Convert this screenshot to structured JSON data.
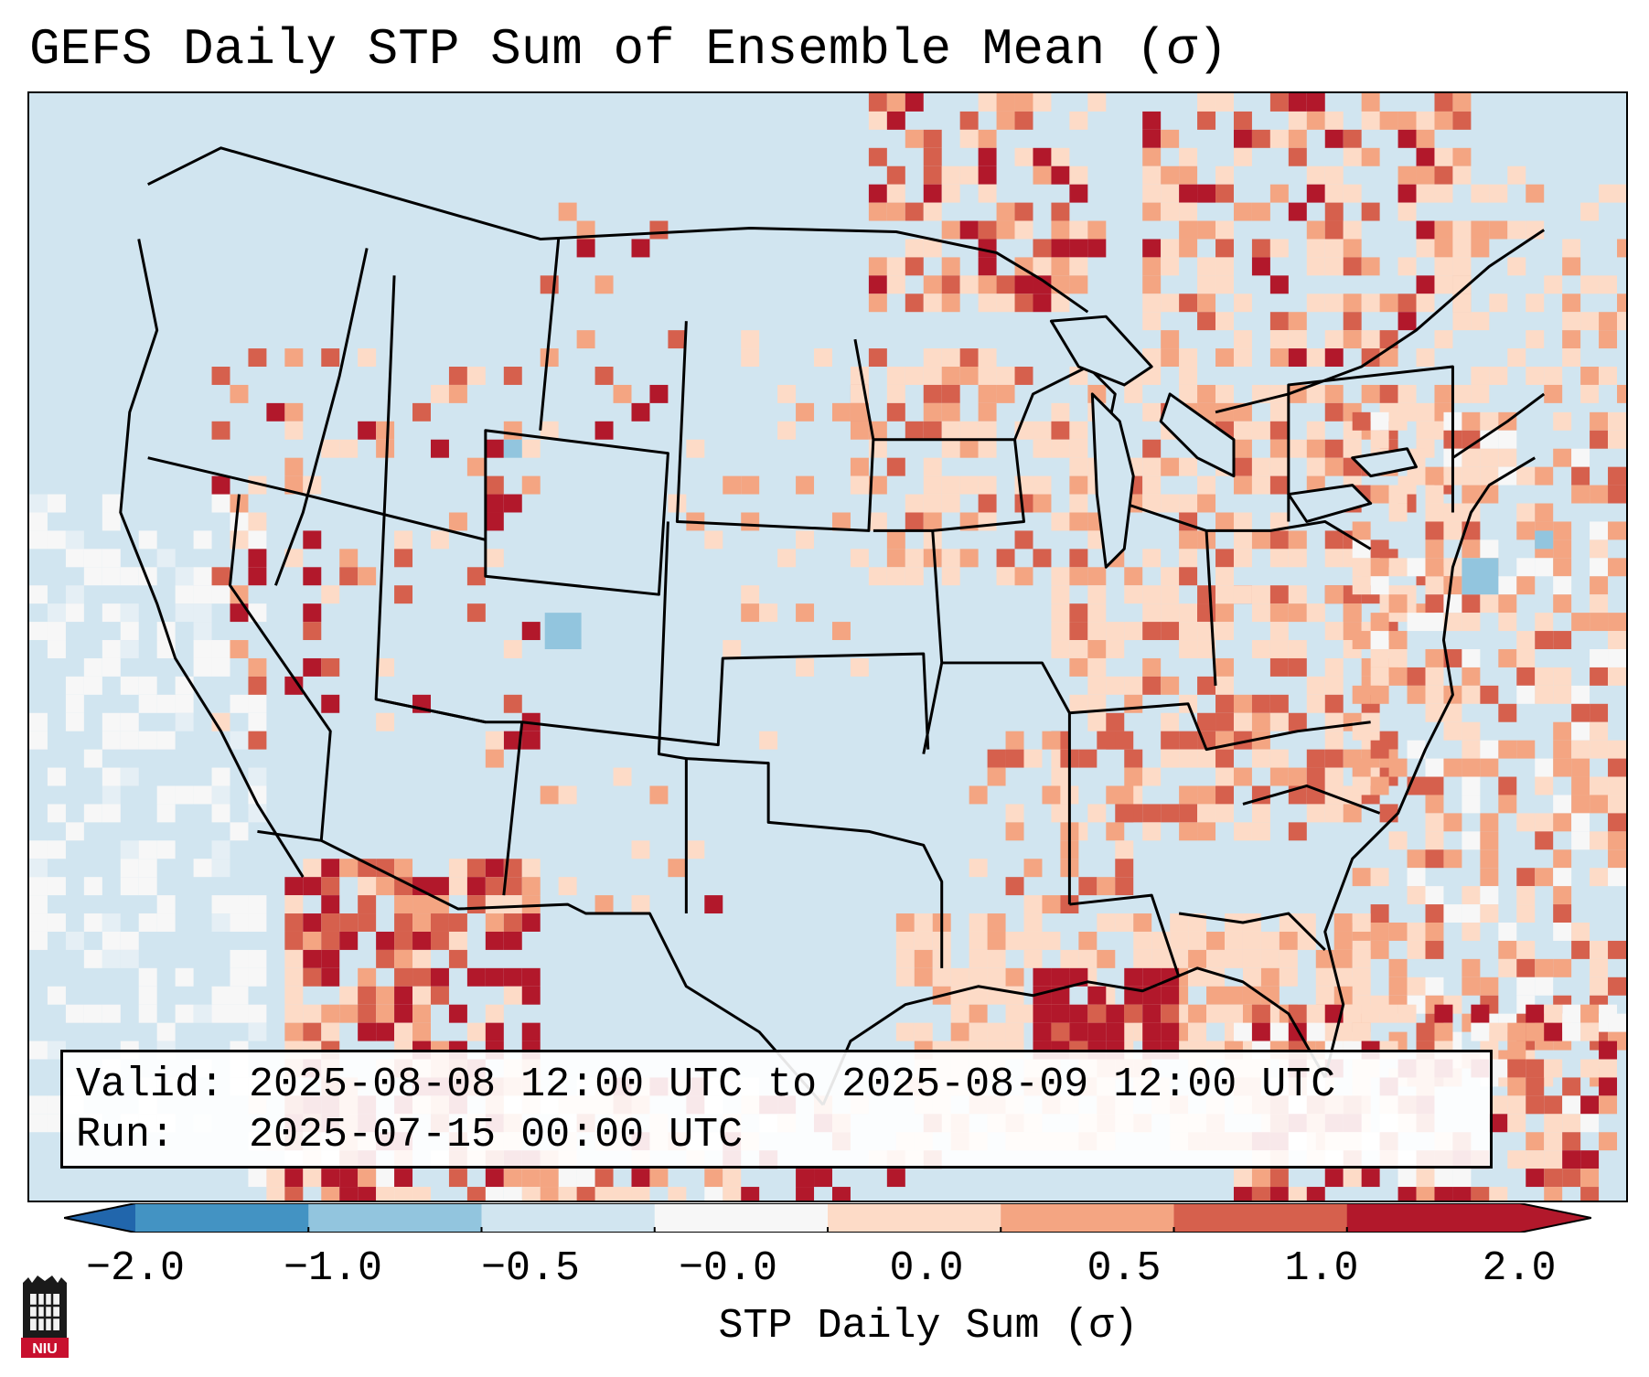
{
  "title": "GEFS Daily STP Sum of Ensemble Mean (σ)",
  "info": {
    "valid_label": "Valid:",
    "valid_value": "2025-08-08 12:00 UTC to 2025-08-09 12:00 UTC",
    "run_label": "Run:",
    "run_value": "2025-07-15 00:00 UTC"
  },
  "colorbar": {
    "label": "STP Daily Sum (σ)",
    "ticks": [
      "−2.0",
      "−1.0",
      "−0.5",
      "−0.0",
      "0.0",
      "0.5",
      "1.0",
      "2.0"
    ],
    "colors": [
      "#4393c3",
      "#92c5de",
      "#d1e5f0",
      "#f7f7f7",
      "#fddbc7",
      "#f4a582",
      "#d6604d",
      "#b2182b"
    ],
    "extend_low_color": "#2166ac",
    "extend_high_color": "#b2182b"
  },
  "map": {
    "background_color": "#d1e5f0",
    "projection": "Lambert Conformal (CONUS)"
  },
  "logo": {
    "text": "NIU"
  }
}
